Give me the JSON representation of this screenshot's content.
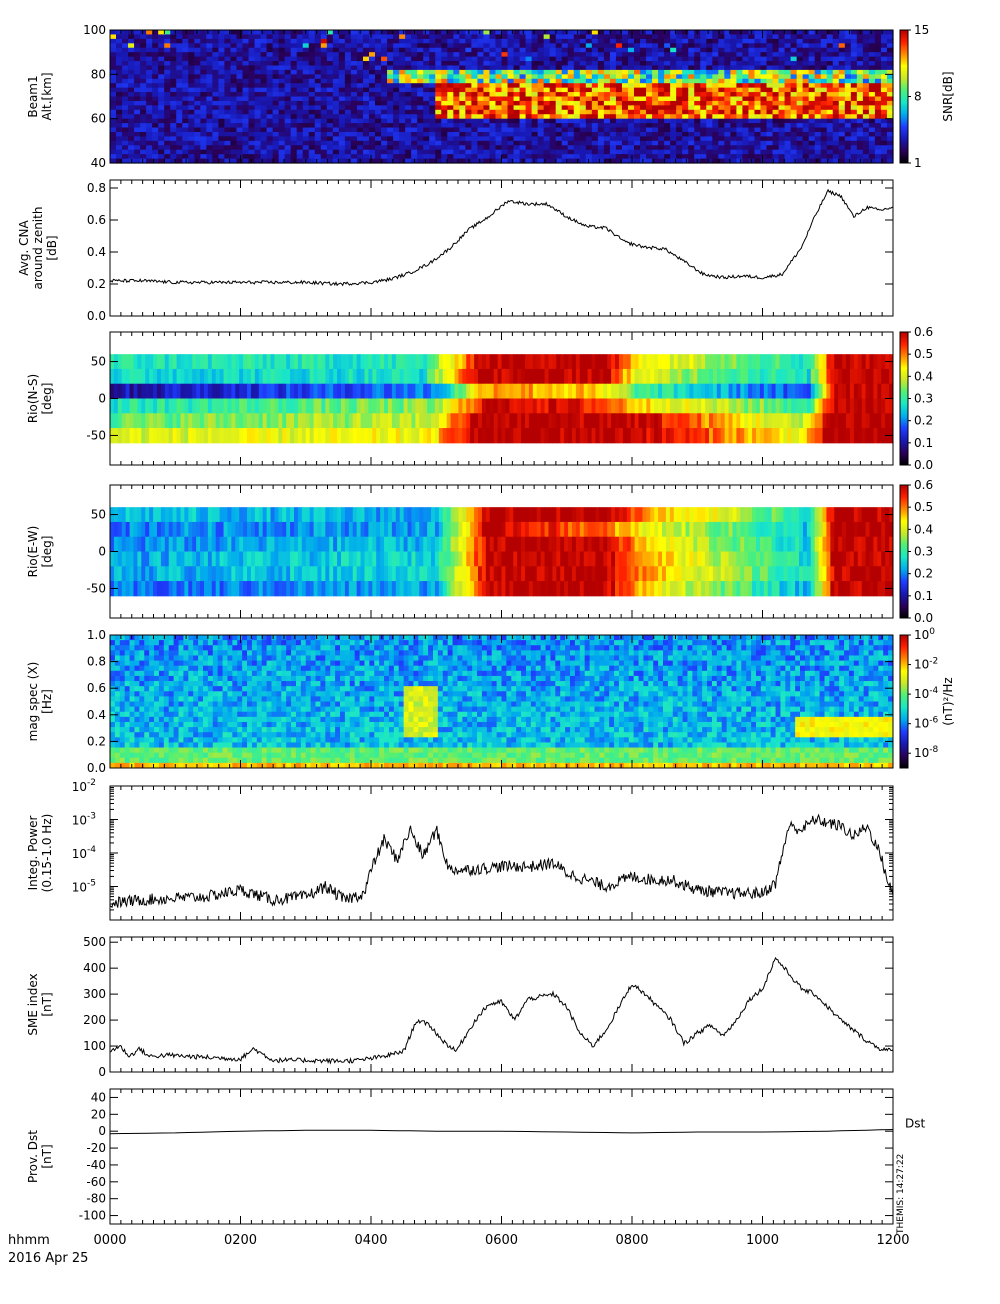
{
  "footer": {
    "time_unit": "hhmm",
    "date": "2016 Apr 25",
    "stamp": "THEMIS: 14:27:22",
    "dst_label": "Dst"
  },
  "colors": {
    "spectrum": [
      "#000000",
      "#2a005a",
      "#1818b4",
      "#1f3cff",
      "#00aaee",
      "#19e6c8",
      "#4cf07a",
      "#c8e62a",
      "#ffff00",
      "#ff8800",
      "#ff2000",
      "#b40000"
    ],
    "line": "#000000",
    "axis": "#000000"
  },
  "chart_data": [
    {
      "id": "beam1",
      "type": "heatmap",
      "ylabel_lines": [
        "Beam1",
        "Alt.[km]"
      ],
      "ylim": [
        40,
        100
      ],
      "yticks": [
        40,
        60,
        80,
        100
      ],
      "xlim": [
        0,
        12
      ],
      "colorbar": {
        "label": "SNR[dB]",
        "range": [
          1,
          15
        ],
        "ticks": [
          1,
          8,
          15
        ]
      },
      "description_values": {
        "background_dB": 2,
        "absorption_layer": {
          "start_hhmm": "0500",
          "end_hhmm": "1200",
          "altitude_km": [
            60,
            75
          ],
          "peak_dB": 15
        },
        "upper_layer": {
          "start_hhmm": "0420",
          "end_hhmm": "1200",
          "altitude_km": [
            75,
            82
          ],
          "level_dB": 9
        }
      }
    },
    {
      "id": "cna",
      "type": "line",
      "ylabel_lines": [
        "Avg. CNA",
        "around zenith",
        "[dB]"
      ],
      "ylim": [
        0.0,
        0.85
      ],
      "yticks": [
        0.0,
        0.2,
        0.4,
        0.6,
        0.8
      ],
      "xlim": [
        0,
        12
      ],
      "x": [
        0,
        0.5,
        1.0,
        1.5,
        2.0,
        2.5,
        3.0,
        3.5,
        4.0,
        4.3,
        4.6,
        4.9,
        5.2,
        5.5,
        5.8,
        6.1,
        6.4,
        6.7,
        7.0,
        7.3,
        7.6,
        7.9,
        8.2,
        8.5,
        8.8,
        9.1,
        9.4,
        9.7,
        10.0,
        10.3,
        10.6,
        10.8,
        11.0,
        11.2,
        11.4,
        11.6,
        11.8,
        12.0
      ],
      "y": [
        0.22,
        0.22,
        0.21,
        0.21,
        0.21,
        0.21,
        0.21,
        0.2,
        0.21,
        0.23,
        0.27,
        0.33,
        0.42,
        0.54,
        0.62,
        0.72,
        0.7,
        0.7,
        0.62,
        0.56,
        0.55,
        0.46,
        0.43,
        0.42,
        0.34,
        0.26,
        0.24,
        0.25,
        0.24,
        0.26,
        0.43,
        0.62,
        0.78,
        0.75,
        0.62,
        0.68,
        0.66,
        0.68
      ]
    },
    {
      "id": "rio_ns",
      "type": "heatmap",
      "ylabel_lines": [
        "Rio(N-S)",
        "[deg]"
      ],
      "ylim": [
        -90,
        90
      ],
      "yticks": [
        -50,
        0,
        50
      ],
      "data_rows": [
        -55,
        55
      ],
      "xlim": [
        0,
        12
      ],
      "colorbar": {
        "label": "",
        "range": [
          0.0,
          0.6
        ],
        "ticks": [
          0.0,
          0.1,
          0.2,
          0.3,
          0.4,
          0.5,
          0.6
        ]
      },
      "rows": [
        {
          "deg": 50,
          "x": [
            0,
            4.8,
            5.7,
            7.6,
            8.1,
            10.7,
            11.1,
            12.0
          ],
          "v": [
            0.28,
            0.28,
            0.6,
            0.6,
            0.45,
            0.28,
            0.6,
            0.6
          ]
        },
        {
          "deg": 30,
          "x": [
            0,
            4.8,
            5.6,
            7.6,
            8.1,
            10.7,
            11.1,
            12.0
          ],
          "v": [
            0.26,
            0.27,
            0.6,
            0.6,
            0.4,
            0.26,
            0.6,
            0.6
          ]
        },
        {
          "deg": 10,
          "x": [
            0,
            5.0,
            5.8,
            7.4,
            8.2,
            10.7,
            11.1,
            12.0
          ],
          "v": [
            0.1,
            0.2,
            0.5,
            0.45,
            0.3,
            0.15,
            0.6,
            0.6
          ]
        },
        {
          "deg": -10,
          "x": [
            0,
            5.0,
            5.8,
            7.4,
            8.2,
            10.7,
            11.1,
            12.0
          ],
          "v": [
            0.28,
            0.35,
            0.6,
            0.55,
            0.45,
            0.3,
            0.6,
            0.6
          ]
        },
        {
          "deg": -30,
          "x": [
            0,
            4.9,
            5.6,
            7.0,
            8.0,
            10.6,
            11.0,
            12.0
          ],
          "v": [
            0.33,
            0.38,
            0.6,
            0.6,
            0.6,
            0.36,
            0.6,
            0.6
          ]
        },
        {
          "deg": -50,
          "x": [
            0,
            4.9,
            5.5,
            7.0,
            8.0,
            10.6,
            11.0,
            12.0
          ],
          "v": [
            0.4,
            0.42,
            0.6,
            0.6,
            0.6,
            0.42,
            0.6,
            0.6
          ]
        }
      ]
    },
    {
      "id": "rio_ew",
      "type": "heatmap",
      "ylabel_lines": [
        "Rio(E-W)",
        "[deg]"
      ],
      "ylim": [
        -90,
        90
      ],
      "yticks": [
        -50,
        0,
        50
      ],
      "data_rows": [
        -55,
        55
      ],
      "xlim": [
        0,
        12
      ],
      "colorbar": {
        "label": "",
        "range": [
          0.0,
          0.6
        ],
        "ticks": [
          0.0,
          0.1,
          0.2,
          0.3,
          0.4,
          0.5,
          0.6
        ]
      },
      "rows": [
        {
          "deg": 50,
          "x": [
            0,
            5.0,
            5.8,
            7.8,
            8.3,
            9.3,
            10.7,
            11.1,
            12.0
          ],
          "v": [
            0.24,
            0.22,
            0.6,
            0.6,
            0.45,
            0.42,
            0.26,
            0.6,
            0.6
          ]
        },
        {
          "deg": 30,
          "x": [
            0,
            5.0,
            5.8,
            7.6,
            8.2,
            9.3,
            10.7,
            11.1,
            12.0
          ],
          "v": [
            0.2,
            0.22,
            0.6,
            0.5,
            0.42,
            0.35,
            0.24,
            0.6,
            0.6
          ]
        },
        {
          "deg": 10,
          "x": [
            0,
            5.0,
            5.8,
            7.6,
            8.2,
            9.3,
            10.7,
            11.1,
            12.0
          ],
          "v": [
            0.2,
            0.24,
            0.6,
            0.6,
            0.45,
            0.36,
            0.25,
            0.6,
            0.6
          ]
        },
        {
          "deg": -10,
          "x": [
            0,
            5.0,
            5.8,
            7.6,
            8.2,
            9.3,
            10.7,
            11.1,
            12.0
          ],
          "v": [
            0.22,
            0.26,
            0.6,
            0.6,
            0.48,
            0.38,
            0.26,
            0.6,
            0.6
          ]
        },
        {
          "deg": -30,
          "x": [
            0,
            5.0,
            5.8,
            7.6,
            8.2,
            9.3,
            10.7,
            11.1,
            12.0
          ],
          "v": [
            0.22,
            0.26,
            0.6,
            0.6,
            0.5,
            0.38,
            0.26,
            0.6,
            0.6
          ]
        },
        {
          "deg": -50,
          "x": [
            0,
            5.0,
            5.8,
            7.6,
            8.2,
            9.3,
            10.7,
            11.1,
            12.0
          ],
          "v": [
            0.18,
            0.22,
            0.6,
            0.6,
            0.45,
            0.35,
            0.22,
            0.6,
            0.6
          ]
        }
      ]
    },
    {
      "id": "magspec",
      "type": "heatmap",
      "ylabel_lines": [
        "mag spec (X)",
        "[Hz]"
      ],
      "ylim": [
        0.0,
        1.0
      ],
      "yticks": [
        0.0,
        0.2,
        0.4,
        0.6,
        0.8,
        1.0
      ],
      "xlim": [
        0,
        12
      ],
      "colorbar": {
        "label": "(nT)²/Hz",
        "log_range": [
          -9,
          0
        ],
        "ticks": [
          0,
          -2,
          -4,
          -6,
          -8
        ]
      },
      "description_values": {
        "background_log": -5.3,
        "low_freq_band_hz": [
          0.0,
          0.05
        ],
        "low_freq_log": -2,
        "pc1_event": {
          "start_hhmm": "1030",
          "end_hhmm": "1200",
          "freq_hz": [
            0.25,
            0.38
          ],
          "log": -2.5
        },
        "burst_near_0500": {
          "freq_hz": [
            0.25,
            0.6
          ],
          "log": -3
        }
      }
    },
    {
      "id": "integ_power",
      "type": "line",
      "ylabel_lines": [
        "Integ. Power",
        "(0.15-1.0 Hz)"
      ],
      "ylog": true,
      "ylim_exp": [
        -6,
        -2
      ],
      "yticks_exp": [
        -5,
        -4,
        -3,
        -2
      ],
      "xlim": [
        0,
        12
      ],
      "x": [
        0,
        0.5,
        1.0,
        1.5,
        2.0,
        2.5,
        3.0,
        3.3,
        3.6,
        3.9,
        4.0,
        4.2,
        4.4,
        4.6,
        4.8,
        5.0,
        5.2,
        5.5,
        6.0,
        6.5,
        6.8,
        7.0,
        7.3,
        7.6,
        8.0,
        8.3,
        8.6,
        9.0,
        9.5,
        10.0,
        10.2,
        10.4,
        10.6,
        10.8,
        11.0,
        11.2,
        11.4,
        11.6,
        11.8,
        11.9,
        12.0
      ],
      "y_exp": [
        -5.5,
        -5.4,
        -5.35,
        -5.3,
        -5.1,
        -5.4,
        -5.3,
        -5.0,
        -5.4,
        -5.2,
        -4.5,
        -3.6,
        -4.2,
        -3.3,
        -4.1,
        -3.3,
        -4.5,
        -4.5,
        -4.4,
        -4.4,
        -4.3,
        -4.6,
        -4.8,
        -5.0,
        -4.7,
        -4.8,
        -4.8,
        -5.1,
        -5.2,
        -5.2,
        -4.9,
        -3.2,
        -3.3,
        -3.0,
        -3.1,
        -3.2,
        -3.5,
        -3.2,
        -4.0,
        -4.7,
        -5.3
      ]
    },
    {
      "id": "sme",
      "type": "line",
      "ylabel_lines": [
        "SME index",
        "[nT]"
      ],
      "ylim": [
        0,
        520
      ],
      "yticks": [
        0,
        100,
        200,
        300,
        400,
        500
      ],
      "xlim": [
        0,
        12
      ],
      "x": [
        0,
        0.15,
        0.3,
        0.45,
        0.6,
        0.9,
        1.2,
        1.6,
        2.0,
        2.2,
        2.5,
        3.0,
        3.5,
        3.8,
        4.2,
        4.5,
        4.7,
        4.9,
        5.1,
        5.3,
        5.6,
        5.8,
        6.0,
        6.2,
        6.4,
        6.6,
        6.8,
        7.0,
        7.2,
        7.4,
        7.6,
        7.8,
        8.0,
        8.2,
        8.4,
        8.6,
        8.8,
        9.0,
        9.2,
        9.4,
        9.6,
        9.8,
        10.0,
        10.2,
        10.4,
        10.6,
        10.8,
        11.0,
        11.2,
        11.4,
        11.6,
        11.8,
        12.0
      ],
      "y": [
        80,
        100,
        60,
        90,
        60,
        65,
        60,
        55,
        50,
        90,
        45,
        45,
        42,
        45,
        60,
        80,
        200,
        180,
        120,
        80,
        200,
        260,
        270,
        200,
        280,
        290,
        300,
        250,
        150,
        100,
        160,
        250,
        340,
        300,
        250,
        200,
        110,
        150,
        180,
        140,
        200,
        280,
        320,
        440,
        380,
        320,
        300,
        250,
        200,
        160,
        120,
        90,
        80
      ]
    },
    {
      "id": "dst",
      "type": "line",
      "ylabel_lines": [
        "Prov. Dst",
        "[nT]"
      ],
      "ylim": [
        -110,
        50
      ],
      "yticks": [
        -100,
        -80,
        -60,
        -40,
        -20,
        0,
        20,
        40
      ],
      "xlim": [
        0,
        12
      ],
      "series_label": "Dst",
      "x": [
        0,
        1,
        2,
        3,
        4,
        5,
        6,
        7,
        8,
        9,
        10,
        11,
        12
      ],
      "y": [
        -3,
        -2,
        0,
        1,
        1,
        0,
        0,
        -1,
        -2,
        -1,
        -1,
        0,
        2
      ]
    }
  ],
  "xaxis": {
    "ticks": [
      {
        "x": 0,
        "label": "0000"
      },
      {
        "x": 2,
        "label": "0200"
      },
      {
        "x": 4,
        "label": "0400"
      },
      {
        "x": 6,
        "label": "0600"
      },
      {
        "x": 8,
        "label": "0800"
      },
      {
        "x": 10,
        "label": "1000"
      },
      {
        "x": 12,
        "label": "1200"
      }
    ]
  }
}
